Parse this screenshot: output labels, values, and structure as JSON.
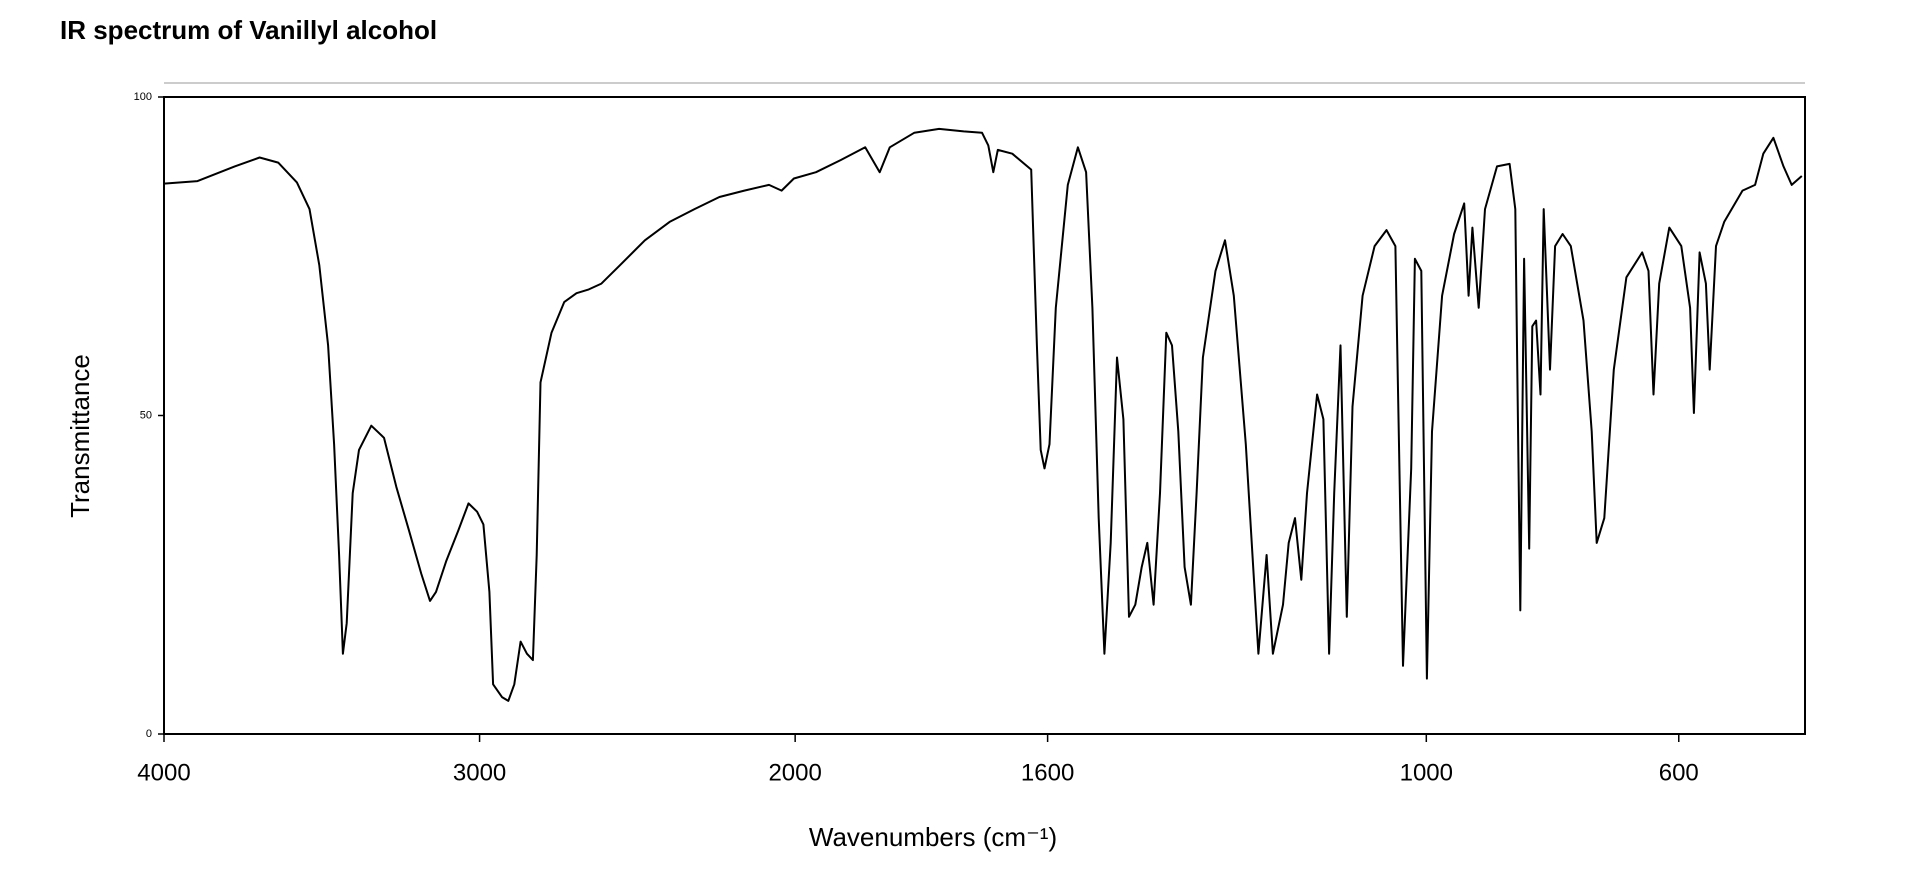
{
  "chart_data": {
    "type": "line",
    "title": "IR spectrum of Vanillyl alcohol",
    "x_label": "Wavenumbers (cm⁻¹)",
    "y_label": "Transmittance",
    "xlim": [
      4000,
      400
    ],
    "x_scale_break": 2000,
    "x_scale_factor_below_break": 2,
    "xticks": [
      4000,
      3000,
      2000,
      1600,
      1000,
      600
    ],
    "ylim": [
      0,
      100
    ],
    "yticks": [
      0,
      50,
      100
    ],
    "color": "#000000",
    "x": [
      4000,
      3894,
      3776,
      3697,
      3638,
      3579,
      3539,
      3508,
      3480,
      3461,
      3445,
      3433,
      3421,
      3402,
      3382,
      3343,
      3303,
      3264,
      3224,
      3185,
      3157,
      3138,
      3106,
      3067,
      3035,
      3008,
      2988,
      2969,
      2957,
      2929,
      2909,
      2890,
      2870,
      2850,
      2831,
      2819,
      2807,
      2772,
      2732,
      2693,
      2654,
      2614,
      2555,
      2476,
      2398,
      2319,
      2240,
      2161,
      2083,
      2043,
      2004,
      1967,
      1928,
      1889,
      1866,
      1850,
      1811,
      1772,
      1733,
      1704,
      1694,
      1686,
      1679,
      1656,
      1626,
      1617,
      1611,
      1605,
      1597,
      1587,
      1568,
      1552,
      1539,
      1529,
      1519,
      1510,
      1500,
      1490,
      1480,
      1471,
      1461,
      1451,
      1442,
      1432,
      1422,
      1412,
      1403,
      1393,
      1383,
      1373,
      1364,
      1354,
      1334,
      1319,
      1305,
      1286,
      1266,
      1253,
      1243,
      1227,
      1218,
      1208,
      1198,
      1189,
      1173,
      1163,
      1154,
      1146,
      1136,
      1126,
      1117,
      1101,
      1082,
      1063,
      1049,
      1037,
      1024,
      1018,
      1008,
      999,
      991,
      975,
      956,
      940,
      933,
      927,
      917,
      907,
      888,
      868,
      859,
      851,
      845,
      837,
      832,
      826,
      819,
      814,
      804,
      796,
      784,
      771,
      751,
      738,
      730,
      718,
      703,
      683,
      658,
      648,
      640,
      631,
      615,
      596,
      582,
      576,
      567,
      557,
      551,
      541,
      528,
      499,
      479,
      466,
      450,
      434,
      421,
      405
    ],
    "values": [
      86.4,
      86.8,
      89.1,
      90.5,
      89.7,
      86.6,
      82.4,
      73.6,
      61.0,
      45.5,
      28.1,
      12.6,
      17.4,
      37.8,
      44.6,
      48.4,
      46.5,
      38.8,
      32.0,
      25.2,
      20.9,
      22.3,
      27.1,
      32.0,
      36.2,
      34.9,
      32.9,
      22.3,
      7.8,
      5.8,
      5.2,
      7.8,
      14.5,
      12.6,
      11.6,
      28.1,
      55.2,
      63.0,
      67.8,
      69.2,
      69.8,
      70.7,
      73.6,
      77.5,
      80.4,
      82.4,
      84.3,
      85.3,
      86.2,
      85.3,
      87.2,
      88.2,
      90.1,
      92.1,
      88.2,
      92.1,
      94.4,
      95.0,
      94.6,
      94.4,
      92.4,
      88.2,
      91.7,
      91.1,
      88.6,
      61.0,
      44.6,
      41.7,
      45.5,
      66.9,
      86.2,
      92.1,
      88.2,
      66.9,
      33.9,
      12.6,
      30.0,
      59.1,
      49.4,
      18.4,
      20.3,
      26.2,
      30.0,
      20.3,
      37.8,
      63.0,
      61.0,
      47.5,
      26.2,
      20.3,
      37.8,
      59.1,
      72.7,
      77.5,
      68.8,
      45.5,
      12.6,
      28.1,
      12.6,
      20.3,
      30.0,
      33.9,
      24.2,
      37.8,
      53.3,
      49.4,
      12.6,
      37.8,
      61.0,
      18.4,
      51.4,
      68.8,
      76.6,
      79.1,
      76.6,
      10.7,
      41.7,
      74.6,
      72.7,
      8.7,
      47.5,
      68.8,
      78.5,
      83.3,
      68.8,
      79.5,
      66.9,
      82.4,
      89.1,
      89.5,
      82.4,
      19.4,
      74.6,
      29.1,
      64.0,
      64.9,
      53.3,
      82.4,
      57.2,
      76.6,
      78.5,
      76.6,
      64.9,
      47.5,
      30.0,
      33.9,
      57.2,
      71.7,
      75.6,
      72.7,
      53.3,
      70.7,
      79.5,
      76.6,
      66.9,
      50.4,
      75.6,
      70.7,
      57.2,
      76.6,
      80.4,
      85.3,
      86.2,
      91.1,
      93.6,
      89.1,
      86.2,
      87.6
    ]
  }
}
